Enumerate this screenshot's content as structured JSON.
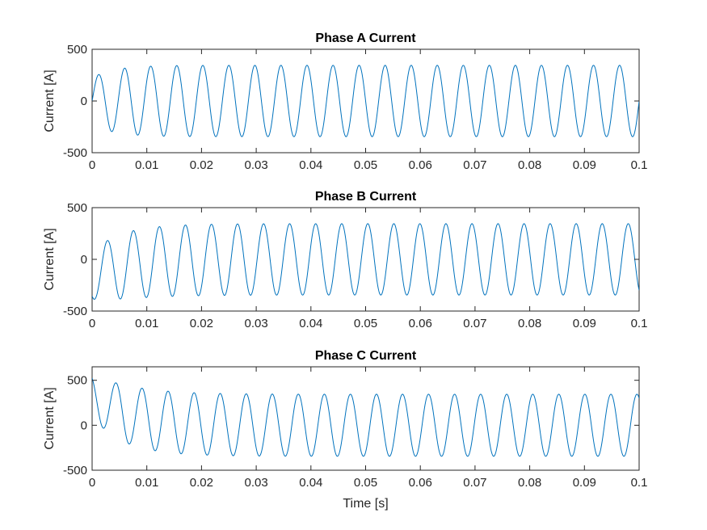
{
  "chart_data": [
    {
      "type": "line",
      "title": "Phase A Current",
      "xlabel": "",
      "ylabel": "Current [A]",
      "xlim": [
        0,
        0.1
      ],
      "ylim": [
        -500,
        500
      ],
      "xticks": [
        0,
        0.01,
        0.02,
        0.03,
        0.04,
        0.05,
        0.06,
        0.07,
        0.08,
        0.09,
        0.1
      ],
      "xtick_labels": [
        "0",
        "0.01",
        "0.02",
        "0.03",
        "0.04",
        "0.05",
        "0.06",
        "0.07",
        "0.08",
        "0.09",
        "0.1"
      ],
      "yticks": [
        -500,
        0,
        500
      ],
      "ytick_labels": [
        "-500",
        "0",
        "500"
      ],
      "grid": false,
      "color": "#0072BD",
      "series": [
        {
          "frequency_hz": 210,
          "steady_amplitude": 345,
          "phase_deg": 0,
          "initial_dc_offset": 0,
          "settling_time_s": 0.012
        }
      ]
    },
    {
      "type": "line",
      "title": "Phase B Current",
      "xlabel": "",
      "ylabel": "Current [A]",
      "xlim": [
        0,
        0.1
      ],
      "ylim": [
        -500,
        500
      ],
      "xticks": [
        0,
        0.01,
        0.02,
        0.03,
        0.04,
        0.05,
        0.06,
        0.07,
        0.08,
        0.09,
        0.1
      ],
      "xtick_labels": [
        "0",
        "0.01",
        "0.02",
        "0.03",
        "0.04",
        "0.05",
        "0.06",
        "0.07",
        "0.08",
        "0.09",
        "0.1"
      ],
      "yticks": [
        -500,
        0,
        500
      ],
      "ytick_labels": [
        "-500",
        "0",
        "500"
      ],
      "grid": false,
      "color": "#0072BD",
      "series": [
        {
          "frequency_hz": 210,
          "steady_amplitude": 345,
          "phase_deg": -120,
          "initial_dc_offset": -160,
          "settling_time_s": 0.012
        }
      ]
    },
    {
      "type": "line",
      "title": "Phase C Current",
      "xlabel": "Time [s]",
      "ylabel": "Current [A]",
      "xlim": [
        0,
        0.1
      ],
      "ylim": [
        -500,
        650
      ],
      "xticks": [
        0,
        0.01,
        0.02,
        0.03,
        0.04,
        0.05,
        0.06,
        0.07,
        0.08,
        0.09,
        0.1
      ],
      "xtick_labels": [
        "0",
        "0.01",
        "0.02",
        "0.03",
        "0.04",
        "0.05",
        "0.06",
        "0.07",
        "0.08",
        "0.09",
        "0.1"
      ],
      "yticks": [
        -500,
        0,
        500
      ],
      "ytick_labels": [
        "-500",
        "0",
        "500"
      ],
      "grid": false,
      "color": "#0072BD",
      "series": [
        {
          "frequency_hz": 210,
          "steady_amplitude": 345,
          "phase_deg": 120,
          "initial_dc_offset": 330,
          "settling_time_s": 0.012
        }
      ]
    }
  ]
}
